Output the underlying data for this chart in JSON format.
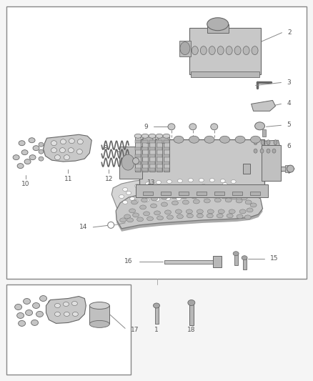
{
  "bg_color": "#f5f5f5",
  "border_color": "#888888",
  "text_color": "#555555",
  "fig_width": 4.38,
  "fig_height": 5.33,
  "line_color": "#888888",
  "part_color": "#d0d0d0",
  "part_edge": "#666666",
  "label_fontsize": 6.5
}
